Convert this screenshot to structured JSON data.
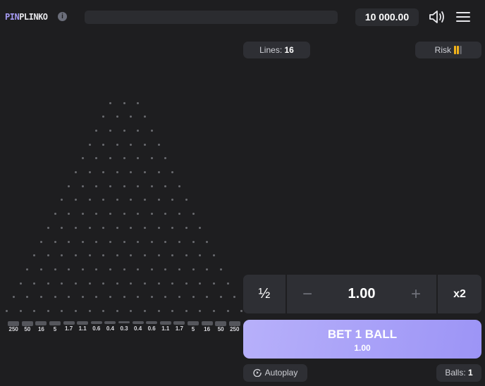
{
  "header": {
    "logo_part1": "PIN",
    "logo_part2": "PLINKO",
    "info_icon": "i",
    "balance": "10 000.00"
  },
  "settings": {
    "lines_label": "Lines:",
    "lines_value": "16",
    "risk_label": "Risk",
    "risk_level": 2,
    "risk_max": 3,
    "risk_color": "#f2b31b"
  },
  "board": {
    "rows": 16,
    "multipliers": [
      "250",
      "50",
      "16",
      "5",
      "1.7",
      "1.1",
      "0.6",
      "0.4",
      "0.3",
      "0.4",
      "0.6",
      "1.1",
      "1.7",
      "5",
      "16",
      "50",
      "250"
    ]
  },
  "bet": {
    "half_label": "½",
    "minus": "−",
    "amount": "1.00",
    "plus": "+",
    "double_label": "x2",
    "button_label": "BET 1 BALL",
    "button_amount": "1.00",
    "accent": "#a79cf5"
  },
  "footer": {
    "autoplay_label": "Autoplay",
    "balls_label": "Balls:",
    "balls_value": "1"
  }
}
